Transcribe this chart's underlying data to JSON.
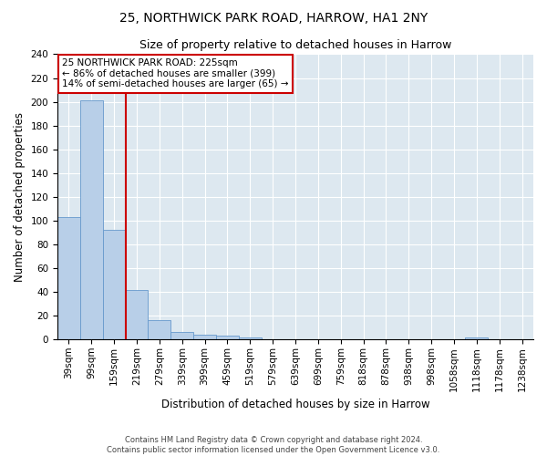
{
  "title": "25, NORTHWICK PARK ROAD, HARROW, HA1 2NY",
  "subtitle": "Size of property relative to detached houses in Harrow",
  "xlabel": "Distribution of detached houses by size in Harrow",
  "ylabel": "Number of detached properties",
  "categories": [
    "39sqm",
    "99sqm",
    "159sqm",
    "219sqm",
    "279sqm",
    "339sqm",
    "399sqm",
    "459sqm",
    "519sqm",
    "579sqm",
    "639sqm",
    "699sqm",
    "759sqm",
    "818sqm",
    "878sqm",
    "938sqm",
    "998sqm",
    "1058sqm",
    "1118sqm",
    "1178sqm",
    "1238sqm"
  ],
  "values": [
    103,
    201,
    92,
    42,
    16,
    6,
    4,
    3,
    2,
    0,
    0,
    0,
    0,
    0,
    0,
    0,
    0,
    0,
    2,
    0,
    0
  ],
  "bar_color": "#b8cfe8",
  "bar_edge_color": "#6699cc",
  "annotation_text": "25 NORTHWICK PARK ROAD: 225sqm\n← 86% of detached houses are smaller (399)\n14% of semi-detached houses are larger (65) →",
  "annotation_box_color": "#ffffff",
  "annotation_box_edge": "#cc0000",
  "red_line_color": "#cc0000",
  "red_line_x": 2.5,
  "ylim": [
    0,
    240
  ],
  "yticks": [
    0,
    20,
    40,
    60,
    80,
    100,
    120,
    140,
    160,
    180,
    200,
    220,
    240
  ],
  "background_color": "#dde8f0",
  "footer_line1": "Contains HM Land Registry data © Crown copyright and database right 2024.",
  "footer_line2": "Contains public sector information licensed under the Open Government Licence v3.0.",
  "title_fontsize": 10,
  "subtitle_fontsize": 9,
  "axis_label_fontsize": 8.5,
  "tick_fontsize": 7.5,
  "annotation_fontsize": 7.5
}
